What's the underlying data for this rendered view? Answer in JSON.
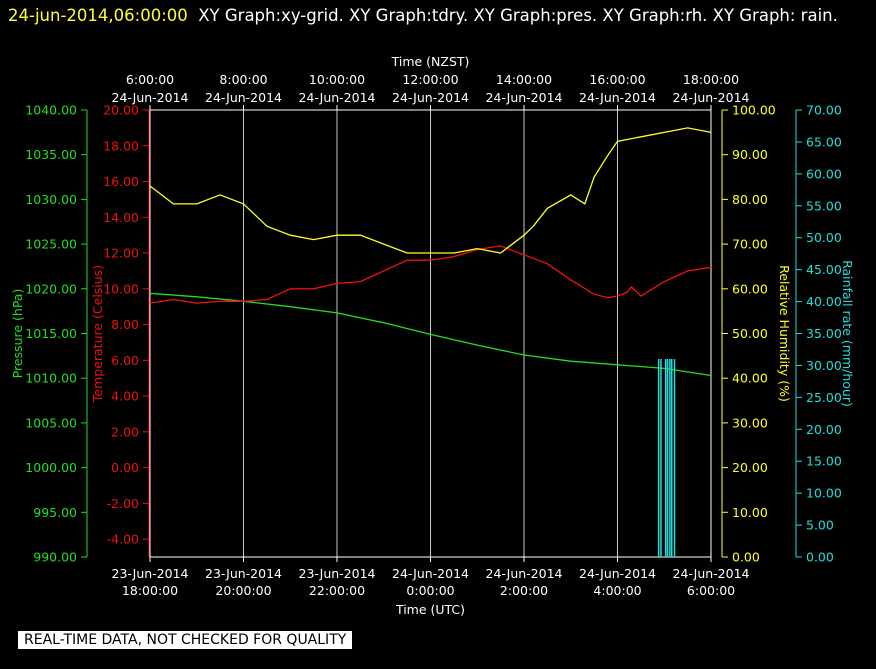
{
  "header": {
    "timestamp": "24-jun-2014,06:00:00",
    "graphs": "XY Graph:xy-grid.  XY Graph:tdry.  XY Graph:pres.  XY Graph:rh.  XY Graph: rain."
  },
  "footer": {
    "notice": "REAL-TIME DATA, NOT CHECKED FOR QUALITY"
  },
  "colors": {
    "pressure": "#22dd22",
    "temperature": "#ee1111",
    "humidity": "#ffff22",
    "rain": "#22dddd",
    "grid": "#c8c8c8"
  },
  "chart_data": {
    "type": "line",
    "x_top": {
      "label": "Time (NZST)",
      "ticks": [
        {
          "time": "6:00:00",
          "date": "24-Jun-2014"
        },
        {
          "time": "8:00:00",
          "date": "24-Jun-2014"
        },
        {
          "time": "10:00:00",
          "date": "24-Jun-2014"
        },
        {
          "time": "12:00:00",
          "date": "24-Jun-2014"
        },
        {
          "time": "14:00:00",
          "date": "24-Jun-2014"
        },
        {
          "time": "16:00:00",
          "date": "24-Jun-2014"
        },
        {
          "time": "18:00:00",
          "date": "24-Jun-2014"
        }
      ]
    },
    "x_bottom": {
      "label": "Time (UTC)",
      "ticks": [
        {
          "date": "23-Jun-2014",
          "time": "18:00:00"
        },
        {
          "date": "23-Jun-2014",
          "time": "20:00:00"
        },
        {
          "date": "23-Jun-2014",
          "time": "22:00:00"
        },
        {
          "date": "24-Jun-2014",
          "time": "0:00:00"
        },
        {
          "date": "24-Jun-2014",
          "time": "2:00:00"
        },
        {
          "date": "24-Jun-2014",
          "time": "4:00:00"
        },
        {
          "date": "24-Jun-2014",
          "time": "6:00:00"
        }
      ],
      "range_hours": [
        0,
        12
      ]
    },
    "grid": true,
    "axes": {
      "pressure": {
        "label": "Pressure (hPa)",
        "ylim": [
          990,
          1040
        ],
        "ticks": [
          "990.00",
          "995.00",
          "1000.00",
          "1005.00",
          "1010.00",
          "1015.00",
          "1020.00",
          "1025.00",
          "1030.00",
          "1035.00",
          "1040.00"
        ]
      },
      "temperature": {
        "label": "Temperature (Celsius)",
        "ylim": [
          -5,
          20
        ],
        "ticks": [
          "-4.00",
          "-2.00",
          "0.00",
          "2.00",
          "4.00",
          "6.00",
          "8.00",
          "10.00",
          "12.00",
          "14.00",
          "16.00",
          "18.00",
          "20.00"
        ]
      },
      "humidity": {
        "label": "Relative Humidity (%)",
        "ylim": [
          0,
          100
        ],
        "ticks": [
          "0.00",
          "10.00",
          "20.00",
          "30.00",
          "40.00",
          "50.00",
          "60.00",
          "70.00",
          "80.00",
          "90.00",
          "100.00"
        ]
      },
      "rain": {
        "label": "Rainfall rate (mm/hour)",
        "ylim": [
          0,
          70
        ],
        "ticks": [
          "0.00",
          "5.00",
          "10.00",
          "15.00",
          "20.00",
          "25.00",
          "30.00",
          "35.00",
          "40.00",
          "45.00",
          "50.00",
          "55.00",
          "60.00",
          "65.00",
          "70.00"
        ]
      }
    },
    "series": [
      {
        "axis": "pressure",
        "x": [
          0,
          1,
          2,
          3,
          4,
          5,
          6,
          7,
          8,
          9,
          10,
          11,
          12
        ],
        "values": [
          1019.5,
          1019.1,
          1018.6,
          1018.0,
          1017.3,
          1016.2,
          1014.9,
          1013.7,
          1012.6,
          1011.9,
          1011.5,
          1011.1,
          1010.3
        ]
      },
      {
        "axis": "temperature",
        "x": [
          0,
          0.5,
          1,
          1.5,
          2,
          2.5,
          3,
          3.5,
          4,
          4.5,
          5,
          5.5,
          6,
          6.5,
          7,
          7.5,
          8,
          8.5,
          9,
          9.5,
          9.8,
          10,
          10.2,
          10.3,
          10.5,
          11,
          11.5,
          12
        ],
        "values": [
          9.2,
          9.4,
          9.2,
          9.3,
          9.3,
          9.4,
          10.0,
          10.0,
          10.3,
          10.4,
          11.0,
          11.6,
          11.6,
          11.8,
          12.2,
          12.4,
          11.9,
          11.4,
          10.5,
          9.7,
          9.5,
          9.6,
          9.8,
          10.1,
          9.6,
          10.4,
          11.0,
          11.2
        ]
      },
      {
        "axis": "humidity",
        "x": [
          0,
          0.5,
          1,
          1.5,
          2,
          2.5,
          3,
          3.5,
          4,
          4.5,
          5,
          5.5,
          6,
          6.5,
          7,
          7.5,
          8,
          8.2,
          8.5,
          9,
          9.3,
          9.5,
          9.8,
          10,
          10.5,
          11,
          11.5,
          12
        ],
        "values": [
          83,
          79,
          79,
          81,
          79,
          74,
          72,
          71,
          72,
          72,
          70,
          68,
          68,
          68,
          69,
          68,
          72,
          74,
          78,
          81,
          79,
          85,
          90,
          93,
          94,
          95,
          96,
          95
        ]
      },
      {
        "axis": "rain",
        "type": "bars",
        "x": [
          10.88,
          10.93,
          11.03,
          11.07,
          11.12,
          11.16,
          11.22
        ],
        "values": [
          31,
          31,
          31,
          31,
          31,
          31,
          31
        ]
      }
    ]
  }
}
